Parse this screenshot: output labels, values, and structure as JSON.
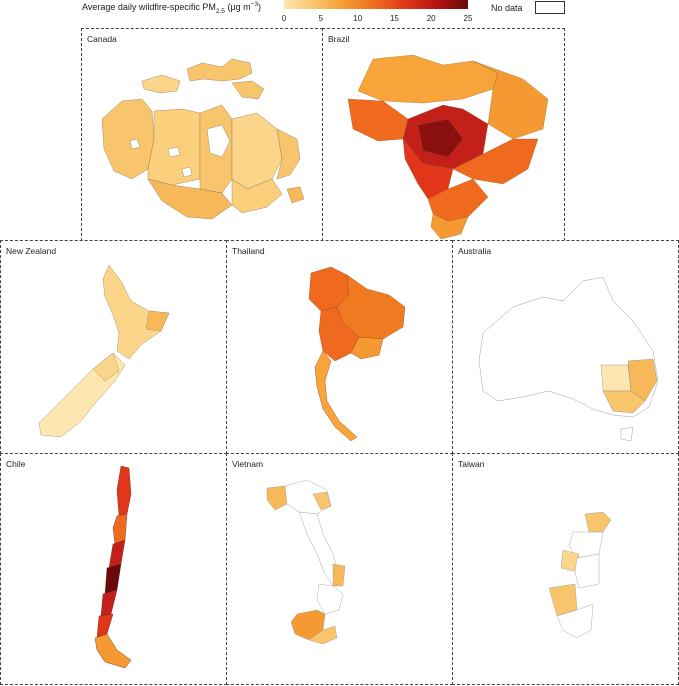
{
  "legend": {
    "title_main": "Average daily wildfire-specific PM",
    "title_sub": "2.5",
    "title_unit": " (μg m",
    "title_exp": "−3",
    "title_close": ")",
    "ticks": [
      "0",
      "5",
      "10",
      "15",
      "20",
      "25"
    ],
    "no_data_label": "No data",
    "scale_min": 0,
    "scale_max": 25,
    "colors": [
      "#fde7b0",
      "#f9c56c",
      "#f59a32",
      "#ef6a1f",
      "#e2361a",
      "#b51414",
      "#6a0a0a"
    ]
  },
  "panels": [
    {
      "key": "canada",
      "label": "Canada"
    },
    {
      "key": "brazil",
      "label": "Brazil"
    },
    {
      "key": "newzealand",
      "label": "New Zealand"
    },
    {
      "key": "thailand",
      "label": "Thailand"
    },
    {
      "key": "australia",
      "label": "Australia"
    },
    {
      "key": "chile",
      "label": "Chile"
    },
    {
      "key": "vietnam",
      "label": "Vietnam"
    },
    {
      "key": "taiwan",
      "label": "Taiwan"
    }
  ]
}
